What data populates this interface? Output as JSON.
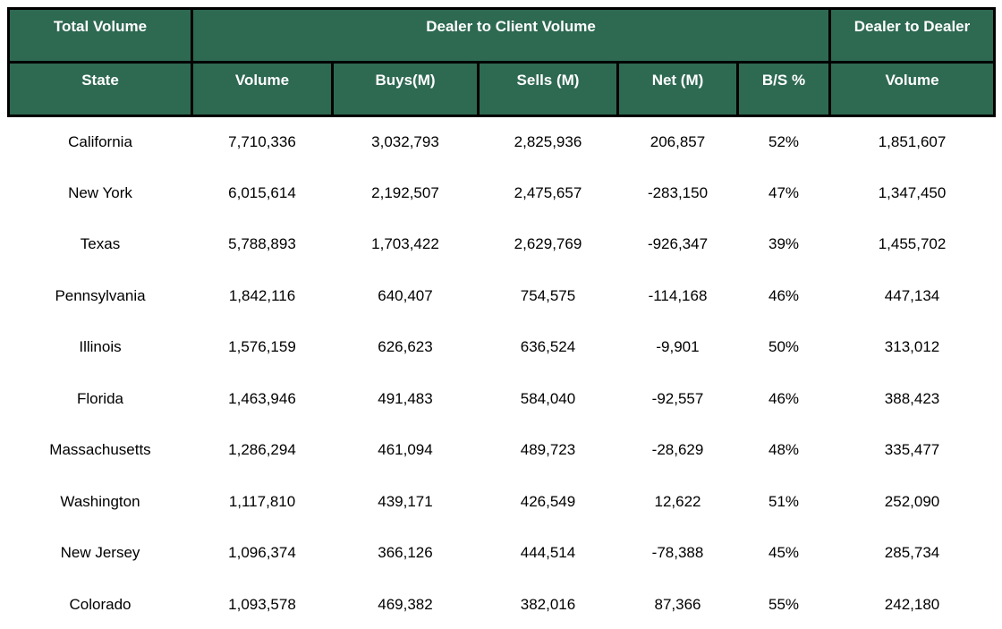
{
  "accent_color": "#2E6952",
  "border_color": "#000000",
  "chart_data": {
    "type": "table",
    "column_groups": [
      "Total Volume",
      "Dealer to Client Volume",
      "Dealer to Dealer"
    ],
    "columns": [
      "State",
      "Volume",
      "Buys(M)",
      "Sells (M)",
      "Net (M)",
      "B/S %",
      "Volume"
    ],
    "column_keys": [
      "state",
      "volume",
      "buys_m",
      "sells_m",
      "net_m",
      "bs_pct",
      "d2d_volume"
    ],
    "rows": [
      [
        "California",
        "7,710,336",
        "3,032,793",
        "2,825,936",
        "206,857",
        "52%",
        "1,851,607"
      ],
      [
        "New York",
        "6,015,614",
        "2,192,507",
        "2,475,657",
        "-283,150",
        "47%",
        "1,347,450"
      ],
      [
        "Texas",
        "5,788,893",
        "1,703,422",
        "2,629,769",
        "-926,347",
        "39%",
        "1,455,702"
      ],
      [
        "Pennsylvania",
        "1,842,116",
        "640,407",
        "754,575",
        "-114,168",
        "46%",
        "447,134"
      ],
      [
        "Illinois",
        "1,576,159",
        "626,623",
        "636,524",
        "-9,901",
        "50%",
        "313,012"
      ],
      [
        "Florida",
        "1,463,946",
        "491,483",
        "584,040",
        "-92,557",
        "46%",
        "388,423"
      ],
      [
        "Massachusetts",
        "1,286,294",
        "461,094",
        "489,723",
        "-28,629",
        "48%",
        "335,477"
      ],
      [
        "Washington",
        "1,117,810",
        "439,171",
        "426,549",
        "12,622",
        "51%",
        "252,090"
      ],
      [
        "New Jersey",
        "1,096,374",
        "366,126",
        "444,514",
        "-78,388",
        "45%",
        "285,734"
      ],
      [
        "Colorado",
        "1,093,578",
        "469,382",
        "382,016",
        "87,366",
        "55%",
        "242,180"
      ]
    ]
  }
}
